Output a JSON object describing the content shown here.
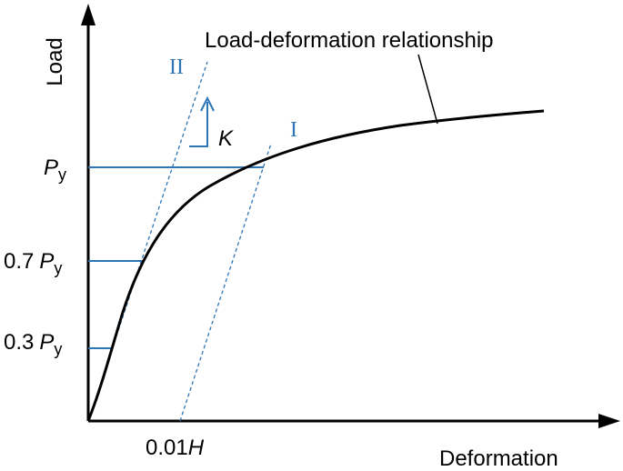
{
  "axes": {
    "y_label": "Load",
    "x_label": "Deformation"
  },
  "curve_label": "Load-deformation relationship",
  "lines": {
    "secant_II": "II",
    "secant_I": "I",
    "stiffness": "K"
  },
  "y_levels": [
    {
      "symbol": "P",
      "subscript": "y"
    },
    {
      "coef": "0.7",
      "symbol": "P",
      "subscript": "y"
    },
    {
      "coef": "0.3",
      "symbol": "P",
      "subscript": "y"
    }
  ],
  "x_level": {
    "coef": "0.01",
    "symbol": "H"
  }
}
